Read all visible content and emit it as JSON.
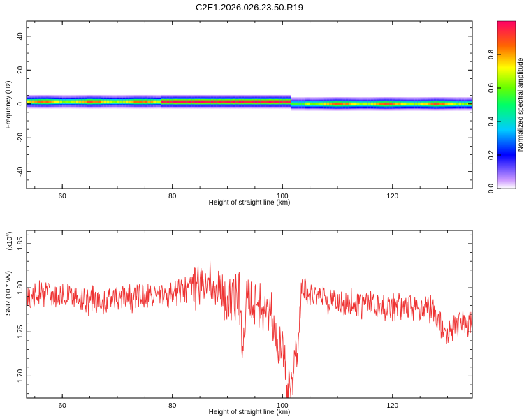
{
  "title": "C2E1.2026.026.23.50.R19",
  "chart_data": [
    {
      "type": "heatmap",
      "xlabel": "Height of straight line (km)",
      "ylabel": "Frequency (Hz)",
      "xlim": [
        53.5,
        134.5
      ],
      "ylim": [
        -50,
        49
      ],
      "x_ticks": [
        "60",
        "80",
        "100",
        "120"
      ],
      "y_ticks": [
        "40",
        "20",
        "0",
        "-20",
        "-40"
      ],
      "colorbar": {
        "label": "Normalized spectral amplitude",
        "ticks": [
          "0.0",
          "0.2",
          "0.4",
          "0.6",
          "0.8"
        ],
        "range": [
          0,
          1
        ]
      },
      "ridge": {
        "segments": [
          {
            "x_start": 53.5,
            "x_end": 101.5,
            "center_hz": 1.3
          },
          {
            "x_start": 101.5,
            "x_end": 134.5,
            "center_hz": 0.0
          }
        ],
        "peak_region_km": [
          78,
          101
        ],
        "halo_half_width_hz": 4
      },
      "grid": false,
      "colormap": "rainbow"
    },
    {
      "type": "line",
      "xlabel": "Height of straight line (km)",
      "ylabel": "SNR (10 * v/v)",
      "y_multiplier_label": "(x10",
      "y_multiplier_exp": "4",
      "y_multiplier_close": ")",
      "xlim": [
        53.5,
        134.5
      ],
      "ylim": [
        1.675,
        1.865
      ],
      "x_ticks": [
        "60",
        "80",
        "100",
        "120"
      ],
      "y_ticks": [
        "1.85",
        "1.80",
        "1.75",
        "1.70"
      ],
      "y_tick_values": [
        1.85,
        1.8,
        1.75,
        1.7
      ],
      "color": "#ee3333",
      "grid": false,
      "series_profile": {
        "x": [
          53.5,
          56,
          60,
          65,
          70,
          75,
          80,
          84,
          86,
          88,
          90,
          91,
          92,
          92.8,
          93.5,
          95,
          97,
          98,
          99,
          100,
          100.8,
          101.5,
          102.5,
          103.5,
          105,
          110,
          115,
          120,
          125,
          127,
          128.5,
          129.5,
          130.5,
          132,
          134.5
        ],
        "y": [
          1.785,
          1.795,
          1.79,
          1.785,
          1.788,
          1.79,
          1.793,
          1.802,
          1.815,
          1.8,
          1.785,
          1.79,
          1.8,
          1.74,
          1.8,
          1.785,
          1.775,
          1.765,
          1.745,
          1.73,
          1.7,
          1.685,
          1.72,
          1.8,
          1.79,
          1.783,
          1.78,
          1.778,
          1.776,
          1.776,
          1.76,
          1.748,
          1.752,
          1.758,
          1.762
        ]
      },
      "noise_amplitude": 0.014,
      "points": 900
    }
  ]
}
